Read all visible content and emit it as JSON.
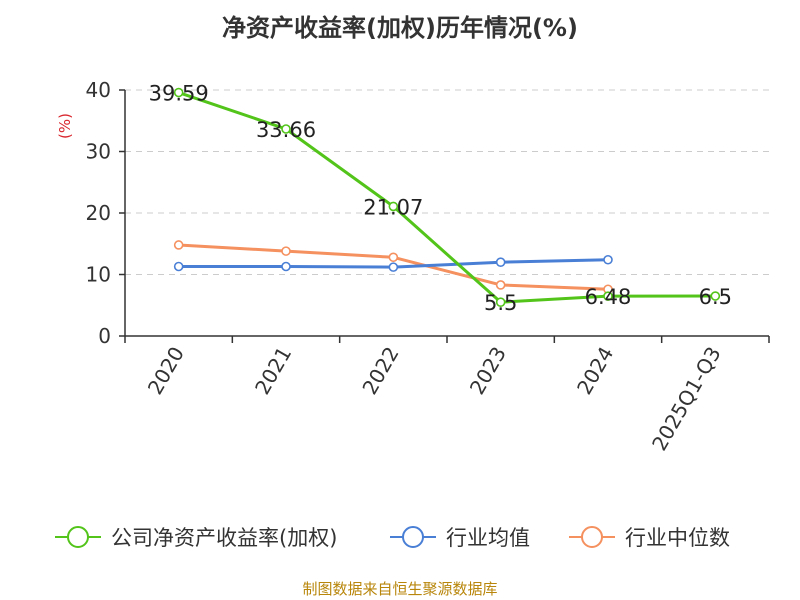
{
  "source_note": "制图数据来自恒生聚源数据库",
  "chart_data": {
    "type": "line",
    "title": "净资产收益率(加权)历年情况(%)",
    "ylabel": "(%)",
    "xlabel": "",
    "categories": [
      "2020",
      "2021",
      "2022",
      "2023",
      "2024",
      "2025Q1-Q3"
    ],
    "ylim": [
      0,
      40
    ],
    "yticks": [
      0,
      10,
      20,
      30,
      40
    ],
    "grid": true,
    "legend_position": "bottom",
    "series": [
      {
        "name": "公司净资产收益率(加权)",
        "color": "#52c41a",
        "values": [
          39.59,
          33.66,
          21.07,
          5.5,
          6.48,
          6.5
        ],
        "labels": [
          "39.59",
          "33.66",
          "21.07",
          "5.5",
          "6.48",
          "6.5"
        ]
      },
      {
        "name": "行业均值",
        "color": "#4a7fd6",
        "values": [
          11.3,
          11.3,
          11.2,
          12.0,
          12.4,
          null
        ]
      },
      {
        "name": "行业中位数",
        "color": "#f5905f",
        "values": [
          14.8,
          13.8,
          12.8,
          8.3,
          7.6,
          null
        ]
      }
    ],
    "colors": {
      "axis": "#333333",
      "grid": "#cccccc",
      "ylabel": "#d9272e"
    }
  }
}
